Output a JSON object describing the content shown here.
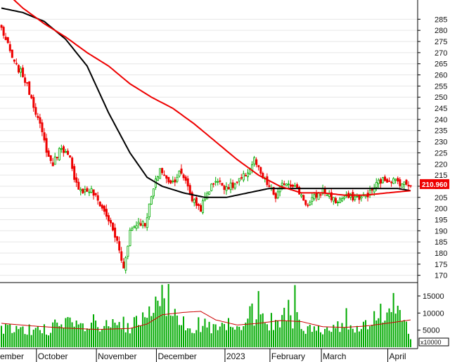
{
  "chart_data": {
    "type": "candlestick",
    "price_axis": {
      "ticks": [
        285,
        280,
        275,
        270,
        265,
        260,
        255,
        250,
        245,
        240,
        235,
        230,
        225,
        220,
        215,
        210,
        205,
        200,
        195,
        190,
        185,
        180,
        175,
        170
      ],
      "range": [
        168,
        293
      ]
    },
    "last_price": "210.960",
    "volume_axis": {
      "ticks": [
        "15000",
        "10000",
        "5000"
      ],
      "unit": "x10000",
      "range": [
        0,
        18500
      ]
    },
    "x_labels": [
      "ember",
      "October",
      "November",
      "December",
      "2023",
      "February",
      "March",
      "April"
    ],
    "x_label_index": [
      0,
      17,
      45,
      73,
      105,
      126,
      150,
      181
    ],
    "total_bars": 192,
    "colors": {
      "up": "#00aa00",
      "down": "#ee0000",
      "ma_short": "#ee0000",
      "ma_long": "#000000",
      "volume": "#00aa00",
      "volume_ma": "#cc0000",
      "price_label_bg": "#ee0000"
    },
    "close_anchors": [
      [
        0,
        281
      ],
      [
        6,
        265
      ],
      [
        10,
        260
      ],
      [
        14,
        250
      ],
      [
        18,
        237
      ],
      [
        22,
        223
      ],
      [
        24,
        220
      ],
      [
        28,
        228
      ],
      [
        32,
        222
      ],
      [
        34,
        212
      ],
      [
        38,
        208
      ],
      [
        42,
        208
      ],
      [
        46,
        202
      ],
      [
        50,
        195
      ],
      [
        54,
        185
      ],
      [
        57,
        173
      ],
      [
        60,
        190
      ],
      [
        64,
        194
      ],
      [
        67,
        193
      ],
      [
        70,
        205
      ],
      [
        72,
        212
      ],
      [
        74,
        218
      ],
      [
        77,
        213
      ],
      [
        80,
        212
      ],
      [
        83,
        216
      ],
      [
        86,
        213
      ],
      [
        89,
        204
      ],
      [
        93,
        200
      ],
      [
        96,
        207
      ],
      [
        100,
        213
      ],
      [
        104,
        210
      ],
      [
        108,
        210
      ],
      [
        112,
        213
      ],
      [
        116,
        218
      ],
      [
        118,
        222
      ],
      [
        121,
        215
      ],
      [
        124,
        211
      ],
      [
        128,
        205
      ],
      [
        132,
        212
      ],
      [
        136,
        211
      ],
      [
        140,
        206
      ],
      [
        143,
        201
      ],
      [
        146,
        205
      ],
      [
        150,
        208
      ],
      [
        153,
        206
      ],
      [
        156,
        203
      ],
      [
        160,
        205
      ],
      [
        164,
        205
      ],
      [
        168,
        205
      ],
      [
        172,
        207
      ],
      [
        176,
        212
      ],
      [
        179,
        213
      ],
      [
        182,
        213
      ],
      [
        185,
        212
      ],
      [
        188,
        211
      ],
      [
        191,
        211
      ]
    ],
    "ma_short_anchors": [
      [
        0,
        299
      ],
      [
        10,
        290
      ],
      [
        20,
        283
      ],
      [
        30,
        277
      ],
      [
        40,
        270
      ],
      [
        50,
        264
      ],
      [
        60,
        256
      ],
      [
        70,
        250
      ],
      [
        80,
        245
      ],
      [
        90,
        238
      ],
      [
        100,
        230
      ],
      [
        110,
        222
      ],
      [
        120,
        215
      ],
      [
        130,
        210
      ],
      [
        140,
        207
      ],
      [
        150,
        207
      ],
      [
        160,
        206
      ],
      [
        170,
        206
      ],
      [
        180,
        207
      ],
      [
        191,
        208
      ]
    ],
    "ma_long_anchors": [
      [
        0,
        290
      ],
      [
        10,
        288
      ],
      [
        20,
        284
      ],
      [
        30,
        276
      ],
      [
        40,
        264
      ],
      [
        50,
        243
      ],
      [
        60,
        225
      ],
      [
        68,
        214
      ],
      [
        75,
        210
      ],
      [
        85,
        207
      ],
      [
        95,
        205
      ],
      [
        105,
        205
      ],
      [
        115,
        207
      ],
      [
        125,
        209
      ],
      [
        135,
        209
      ],
      [
        145,
        209
      ],
      [
        155,
        209
      ],
      [
        165,
        209
      ],
      [
        175,
        209
      ],
      [
        185,
        209
      ],
      [
        191,
        208
      ]
    ],
    "volume_anchors": [
      [
        0,
        5200
      ],
      [
        10,
        4800
      ],
      [
        20,
        5500
      ],
      [
        30,
        6500
      ],
      [
        40,
        5800
      ],
      [
        50,
        6000
      ],
      [
        60,
        5500
      ],
      [
        70,
        9500
      ],
      [
        75,
        14000
      ],
      [
        80,
        10500
      ],
      [
        90,
        6500
      ],
      [
        100,
        5500
      ],
      [
        110,
        5000
      ],
      [
        120,
        11000
      ],
      [
        126,
        7500
      ],
      [
        135,
        9000
      ],
      [
        145,
        5000
      ],
      [
        155,
        6000
      ],
      [
        165,
        5500
      ],
      [
        175,
        8000
      ],
      [
        182,
        14000
      ],
      [
        186,
        11000
      ],
      [
        191,
        2500
      ]
    ],
    "volume_ma_anchors": [
      [
        0,
        7000
      ],
      [
        15,
        6200
      ],
      [
        30,
        5600
      ],
      [
        45,
        5200
      ],
      [
        60,
        5500
      ],
      [
        68,
        6800
      ],
      [
        75,
        9500
      ],
      [
        85,
        10200
      ],
      [
        93,
        10500
      ],
      [
        100,
        8000
      ],
      [
        110,
        6500
      ],
      [
        120,
        7000
      ],
      [
        130,
        7800
      ],
      [
        140,
        7500
      ],
      [
        150,
        6000
      ],
      [
        160,
        5800
      ],
      [
        170,
        6200
      ],
      [
        180,
        7000
      ],
      [
        191,
        8000
      ]
    ]
  }
}
